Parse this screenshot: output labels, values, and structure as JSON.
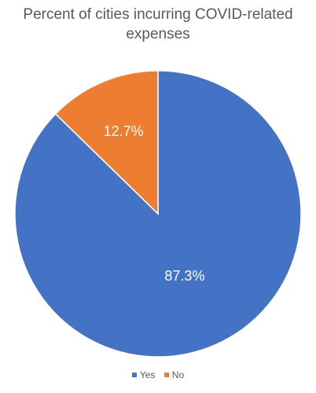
{
  "chart_data": {
    "type": "pie",
    "title": "Percent of cities incurring COVID-related\nexpenses",
    "categories": [
      "Yes",
      "No"
    ],
    "values": [
      87.3,
      12.7
    ],
    "data_labels": [
      "87.3%",
      "12.7%"
    ],
    "colors": [
      "#4472C4",
      "#ED7D31"
    ],
    "legend_position": "bottom"
  }
}
